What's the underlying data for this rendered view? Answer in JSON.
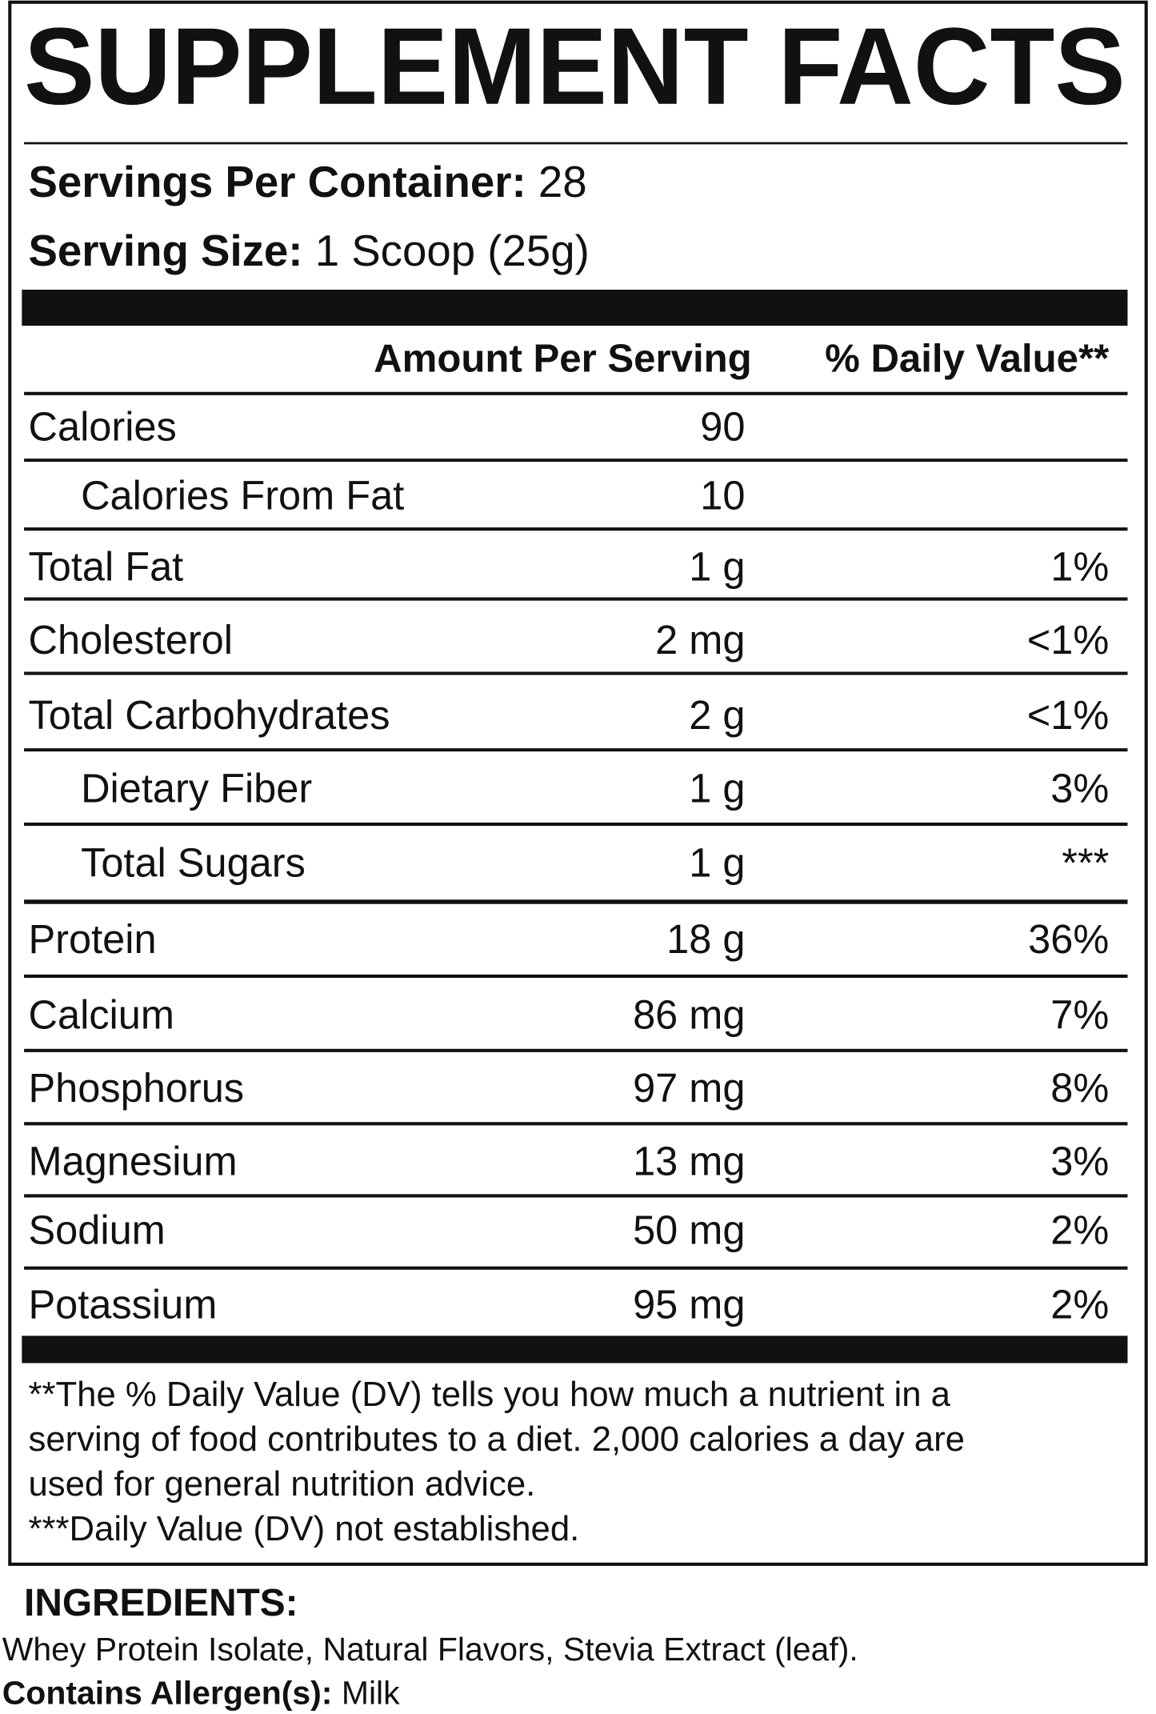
{
  "header": {
    "title": "SUPPLEMENT FACTS",
    "servings_per_container": {
      "label": "Servings Per Container:",
      "value": "28"
    },
    "serving_size": {
      "label": "Serving Size:",
      "value": "1 Scoop (25g)"
    }
  },
  "table": {
    "columns": [
      "Amount Per Serving",
      "% Daily Value**"
    ],
    "rows": [
      {
        "name": "Calories",
        "amount": "90",
        "dv": null,
        "level": 0
      },
      {
        "name": "Calories From Fat",
        "amount": "10",
        "dv": null,
        "level": 1
      },
      {
        "name": "Total Fat",
        "amount": "1 g",
        "dv": "1%",
        "level": 0
      },
      {
        "name": "Cholesterol",
        "amount": "2 mg",
        "dv": "<1%",
        "level": 0
      },
      {
        "name": "Total Carbohydrates",
        "amount": "2 g",
        "dv": "<1%",
        "level": 0
      },
      {
        "name": "Dietary Fiber",
        "amount": "1 g",
        "dv": "3%",
        "level": 1
      },
      {
        "name": "Total Sugars",
        "amount": "1 g",
        "dv": "***",
        "level": 1
      },
      {
        "name": "Protein",
        "amount": "18 g",
        "dv": "36%",
        "level": 0
      },
      {
        "name": "Calcium",
        "amount": "86 mg",
        "dv": "7%",
        "level": 0
      },
      {
        "name": "Phosphorus",
        "amount": "97 mg",
        "dv": "8%",
        "level": 0
      },
      {
        "name": "Magnesium",
        "amount": "13 mg",
        "dv": "3%",
        "level": 0
      },
      {
        "name": "Sodium",
        "amount": "50 mg",
        "dv": "2%",
        "level": 0
      },
      {
        "name": "Potassium",
        "amount": "95 mg",
        "dv": "2%",
        "level": 0
      }
    ]
  },
  "footnote": [
    "**The % Daily Value (DV) tells you how much a nutrient in a",
    "serving of food contributes to a diet. 2,000 calories a day are",
    "used for general nutrition advice.",
    "***Daily Value (DV) not established."
  ],
  "ingredients": {
    "title": "INGREDIENTS:",
    "text": "Whey Protein Isolate, Natural Flavors, Stevia Extract (leaf).",
    "allergen_label": "Contains Allergen(s):",
    "allergen_value": "Milk"
  }
}
